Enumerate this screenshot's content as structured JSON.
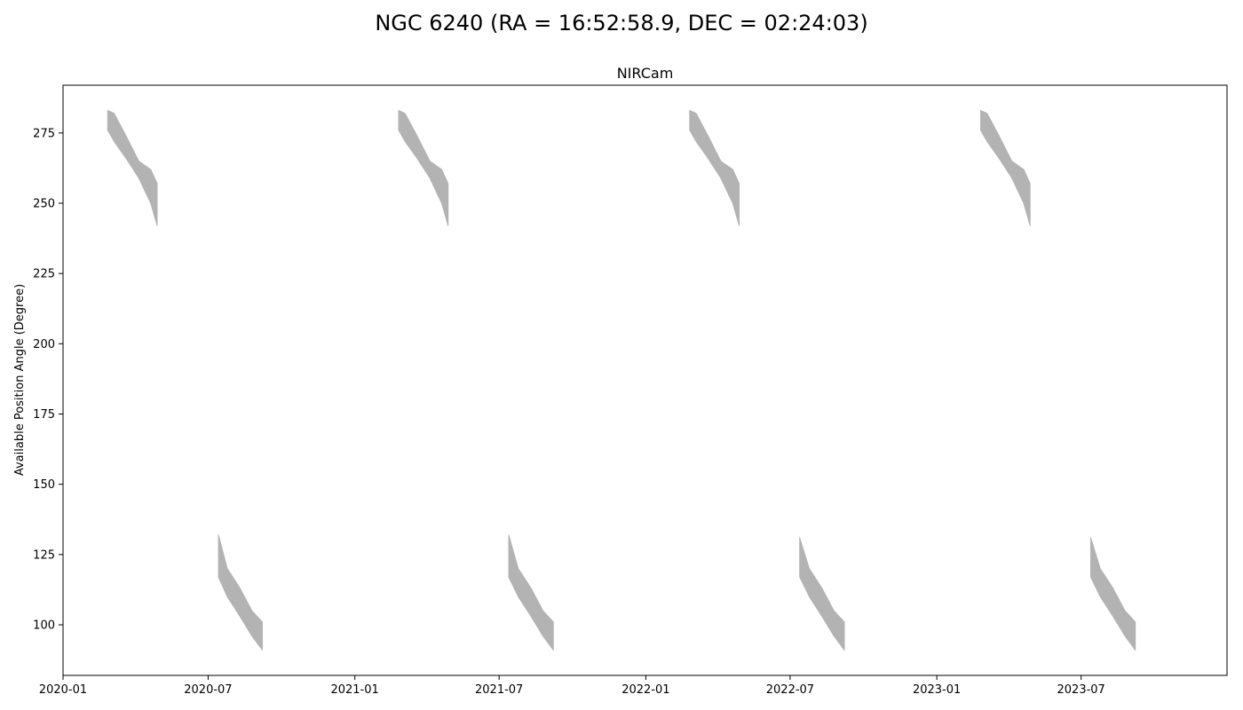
{
  "chart_data": {
    "type": "area",
    "suptitle": "NGC 6240 (RA = 16:52:58.9, DEC = 02:24:03)",
    "title": "NIRCam",
    "xlabel": "",
    "ylabel": "Available Position Angle (Degree)",
    "xlim": [
      "2020-01-01",
      "2023-12-31"
    ],
    "ylim": [
      82,
      292
    ],
    "grid": false,
    "x_ticks": [
      {
        "date": "2020-01-01",
        "label": "2020-01"
      },
      {
        "date": "2020-07-01",
        "label": "2020-07"
      },
      {
        "date": "2021-01-01",
        "label": "2021-01"
      },
      {
        "date": "2021-07-01",
        "label": "2021-07"
      },
      {
        "date": "2022-01-01",
        "label": "2022-01"
      },
      {
        "date": "2022-07-01",
        "label": "2022-07"
      },
      {
        "date": "2023-01-01",
        "label": "2023-01"
      },
      {
        "date": "2023-07-01",
        "label": "2023-07"
      }
    ],
    "y_ticks": [
      {
        "value": 100,
        "label": "100"
      },
      {
        "value": 125,
        "label": "125"
      },
      {
        "value": 150,
        "label": "150"
      },
      {
        "value": 175,
        "label": "175"
      },
      {
        "value": 200,
        "label": "200"
      },
      {
        "value": 225,
        "label": "225"
      },
      {
        "value": 250,
        "label": "250"
      },
      {
        "value": 275,
        "label": "275"
      }
    ],
    "fill_color": "#b3b3b3",
    "series": [
      {
        "x": [
          "2020-02-26",
          "2020-03-05",
          "2020-03-20",
          "2020-04-05",
          "2020-04-20",
          "2020-04-28"
        ],
        "upper": [
          283,
          282,
          274,
          265,
          262,
          257
        ],
        "lower": [
          276,
          272,
          266,
          259,
          250,
          242
        ]
      },
      {
        "x": [
          "2020-07-14",
          "2020-07-25",
          "2020-08-10",
          "2020-08-25",
          "2020-09-07"
        ],
        "upper": [
          132,
          120,
          113,
          105,
          101
        ],
        "lower": [
          117,
          110,
          103,
          96,
          91
        ]
      },
      {
        "x": [
          "2021-02-25",
          "2021-03-05",
          "2021-03-20",
          "2021-04-05",
          "2021-04-20",
          "2021-04-28"
        ],
        "upper": [
          283,
          282,
          274,
          265,
          262,
          257
        ],
        "lower": [
          276,
          272,
          266,
          259,
          250,
          242
        ]
      },
      {
        "x": [
          "2021-07-13",
          "2021-07-25",
          "2021-08-10",
          "2021-08-25",
          "2021-09-07"
        ],
        "upper": [
          132,
          120,
          113,
          105,
          101
        ],
        "lower": [
          117,
          110,
          103,
          96,
          91
        ]
      },
      {
        "x": [
          "2022-02-25",
          "2022-03-05",
          "2022-03-20",
          "2022-04-05",
          "2022-04-20",
          "2022-04-28"
        ],
        "upper": [
          283,
          282,
          274,
          265,
          262,
          257
        ],
        "lower": [
          276,
          272,
          266,
          259,
          250,
          242
        ]
      },
      {
        "x": [
          "2022-07-13",
          "2022-07-25",
          "2022-08-10",
          "2022-08-25",
          "2022-09-07"
        ],
        "upper": [
          131,
          120,
          113,
          105,
          101
        ],
        "lower": [
          117,
          110,
          103,
          96,
          91
        ]
      },
      {
        "x": [
          "2023-02-25",
          "2023-03-05",
          "2023-03-20",
          "2023-04-05",
          "2023-04-20",
          "2023-04-28"
        ],
        "upper": [
          283,
          282,
          274,
          265,
          262,
          257
        ],
        "lower": [
          276,
          272,
          266,
          259,
          250,
          242
        ]
      },
      {
        "x": [
          "2023-07-13",
          "2023-07-25",
          "2023-08-10",
          "2023-08-25",
          "2023-09-07"
        ],
        "upper": [
          131,
          120,
          113,
          105,
          101
        ],
        "lower": [
          117,
          110,
          103,
          96,
          91
        ]
      }
    ]
  }
}
